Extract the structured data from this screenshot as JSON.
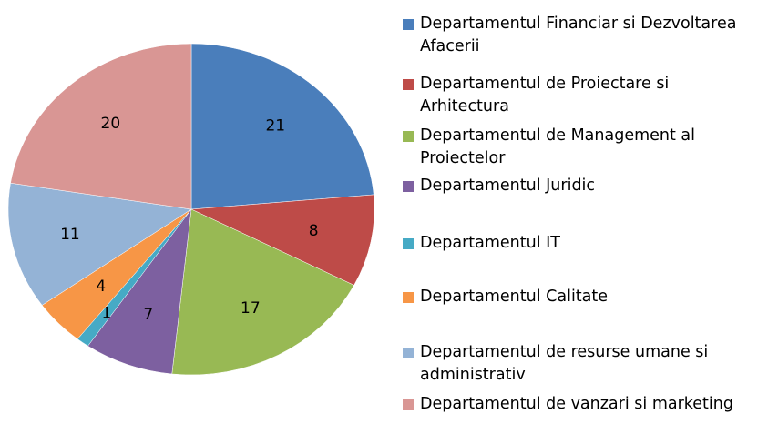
{
  "chart_data": {
    "type": "pie",
    "categories": [
      "Departamentul Financiar si Dezvoltarea Afacerii",
      "Departamentul de Proiectare si Arhitectura",
      "Departamentul de Management al Proiectelor",
      "Departamentul Juridic",
      "Departamentul IT",
      "Departamentul Calitate",
      "Departamentul de resurse umane si administrativ",
      "Departamentul de vanzari si marketing"
    ],
    "values": [
      21,
      8,
      17,
      7,
      1,
      4,
      11,
      20
    ],
    "colors": [
      "#4a7ebb",
      "#be4b48",
      "#98b954",
      "#7d60a0",
      "#46aac5",
      "#f79646",
      "#94b3d6",
      "#d99694"
    ],
    "legend": "right"
  }
}
